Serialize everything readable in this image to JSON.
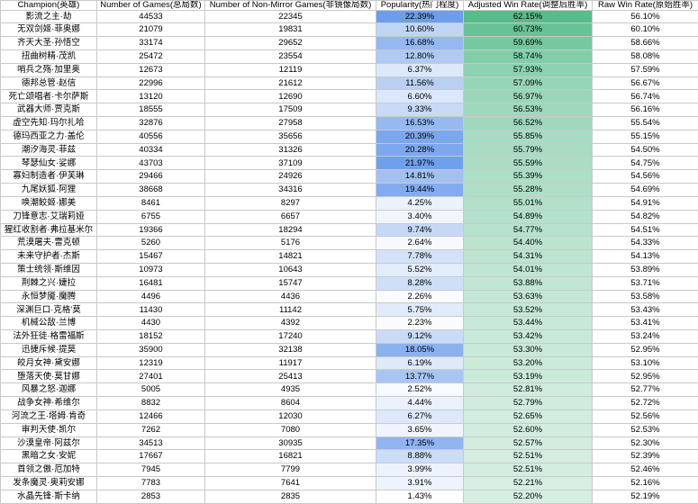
{
  "table": {
    "columns": [
      {
        "key": "champion",
        "label": "Champion(英雄)"
      },
      {
        "key": "games",
        "label": "Number of Games(总局数)"
      },
      {
        "key": "non-mirror-games",
        "label": "Number of Non-Mirror Games(非镜像局数)"
      },
      {
        "key": "popularity",
        "label": "Popularity(热门程度)"
      },
      {
        "key": "adjusted-win-rate",
        "label": "Adjusted Win Rate(调整后胜率)"
      },
      {
        "key": "raw-win-rate",
        "label": "Raw Win Rate(原始胜率)"
      }
    ],
    "rows": [
      [
        "影流之主·劫",
        "44533",
        "22345",
        "22.39%",
        "62.15%",
        "56.10%"
      ],
      [
        "无双剑姬·菲奥娜",
        "21079",
        "19831",
        "10.60%",
        "60.73%",
        "60.10%"
      ],
      [
        "齐天大圣·孙悟空",
        "33174",
        "29652",
        "16.68%",
        "59.69%",
        "58.66%"
      ],
      [
        "扭曲树精·茂凯",
        "25472",
        "23554",
        "12.80%",
        "58.74%",
        "58.08%"
      ],
      [
        "哨兵之殇·加里奥",
        "12673",
        "12119",
        "6.37%",
        "57.93%",
        "57.59%"
      ],
      [
        "德邦总管·赵信",
        "22996",
        "21612",
        "11.56%",
        "57.09%",
        "56.67%"
      ],
      [
        "死亡颂唱者·卡尔萨斯",
        "13120",
        "12690",
        "6.60%",
        "56.97%",
        "56.74%"
      ],
      [
        "武器大师·贾克斯",
        "18555",
        "17509",
        "9.33%",
        "56.53%",
        "56.16%"
      ],
      [
        "虚空先知·玛尔扎哈",
        "32876",
        "27958",
        "16.53%",
        "56.52%",
        "55.54%"
      ],
      [
        "德玛西亚之力·盖伦",
        "40556",
        "35656",
        "20.39%",
        "55.85%",
        "55.15%"
      ],
      [
        "潮汐海灵·菲兹",
        "40334",
        "31326",
        "20.28%",
        "55.79%",
        "54.50%"
      ],
      [
        "琴瑟仙女·娑娜",
        "43703",
        "37109",
        "21.97%",
        "55.59%",
        "54.75%"
      ],
      [
        "寡妇制造者·伊芙琳",
        "29466",
        "24926",
        "14.81%",
        "55.39%",
        "54.56%"
      ],
      [
        "九尾妖狐·阿狸",
        "38668",
        "34316",
        "19.44%",
        "55.28%",
        "54.69%"
      ],
      [
        "唤潮鲛姬·娜美",
        "8461",
        "8297",
        "4.25%",
        "55.01%",
        "54.91%"
      ],
      [
        "刀锋意志·艾瑞莉娅",
        "6755",
        "6657",
        "3.40%",
        "54.89%",
        "54.82%"
      ],
      [
        "猩红收割者·弗拉基米尔",
        "19366",
        "18294",
        "9.74%",
        "54.77%",
        "54.51%"
      ],
      [
        "荒漠屠夫·雷克顿",
        "5260",
        "5176",
        "2.64%",
        "54.40%",
        "54.33%"
      ],
      [
        "未来守护者·杰斯",
        "15467",
        "14821",
        "7.78%",
        "54.31%",
        "54.13%"
      ],
      [
        "策士统领·斯维因",
        "10973",
        "10643",
        "5.52%",
        "54.01%",
        "53.89%"
      ],
      [
        "荆棘之兴·婕拉",
        "16481",
        "15747",
        "8.28%",
        "53.88%",
        "53.71%"
      ],
      [
        "永恒梦魇·魔腾",
        "4496",
        "4436",
        "2.26%",
        "53.63%",
        "53.58%"
      ],
      [
        "深渊巨口·克格'莫",
        "11430",
        "11142",
        "5.75%",
        "53.52%",
        "53.43%"
      ],
      [
        "机械公敌·兰博",
        "4430",
        "4392",
        "2.23%",
        "53.44%",
        "53.41%"
      ],
      [
        "法外狂徒·格雷福斯",
        "18152",
        "17240",
        "9.12%",
        "53.42%",
        "53.24%"
      ],
      [
        "迅捷斥候·提莫",
        "35900",
        "32138",
        "18.05%",
        "53.30%",
        "52.95%"
      ],
      [
        "皎月女神·黛安娜",
        "12319",
        "11917",
        "6.19%",
        "53.20%",
        "53.10%"
      ],
      [
        "堕落天使·莫甘娜",
        "27401",
        "25413",
        "13.77%",
        "53.19%",
        "52.95%"
      ],
      [
        "风暴之怒·迦娜",
        "5005",
        "4935",
        "2.52%",
        "52.81%",
        "52.77%"
      ],
      [
        "战争女神·希维尔",
        "8832",
        "8604",
        "4.44%",
        "52.79%",
        "52.72%"
      ],
      [
        "河流之王·塔姆·肯奇",
        "12466",
        "12030",
        "6.27%",
        "52.65%",
        "52.56%"
      ],
      [
        "审判天使·凯尔",
        "7262",
        "7080",
        "3.65%",
        "52.60%",
        "52.53%"
      ],
      [
        "沙漠皇帝·阿兹尔",
        "34513",
        "30935",
        "17.35%",
        "52.57%",
        "52.30%"
      ],
      [
        "黑暗之女·安妮",
        "17667",
        "16821",
        "8.88%",
        "52.51%",
        "52.39%"
      ],
      [
        "首领之傲·厄加特",
        "7945",
        "7799",
        "3.99%",
        "52.51%",
        "52.46%"
      ],
      [
        "发条魔灵·奥莉安娜",
        "7783",
        "7641",
        "3.91%",
        "52.21%",
        "52.16%"
      ],
      [
        "水晶先锋·斯卡纳",
        "2853",
        "2835",
        "1.43%",
        "52.20%",
        "52.19%"
      ]
    ],
    "color_scales": {
      "popularity": {
        "column": 3,
        "min": 1.43,
        "max": 22.39,
        "min_color": "#FFFFFF",
        "max_color": "#6D9EEB"
      },
      "adjusted_win_rate": {
        "column": 4,
        "min": 52.2,
        "max": 62.15,
        "min_color": "#D7EFE3",
        "max_color": "#57BB8A"
      }
    },
    "grid_color": "#C9C9C9",
    "text_color": "#000000"
  }
}
